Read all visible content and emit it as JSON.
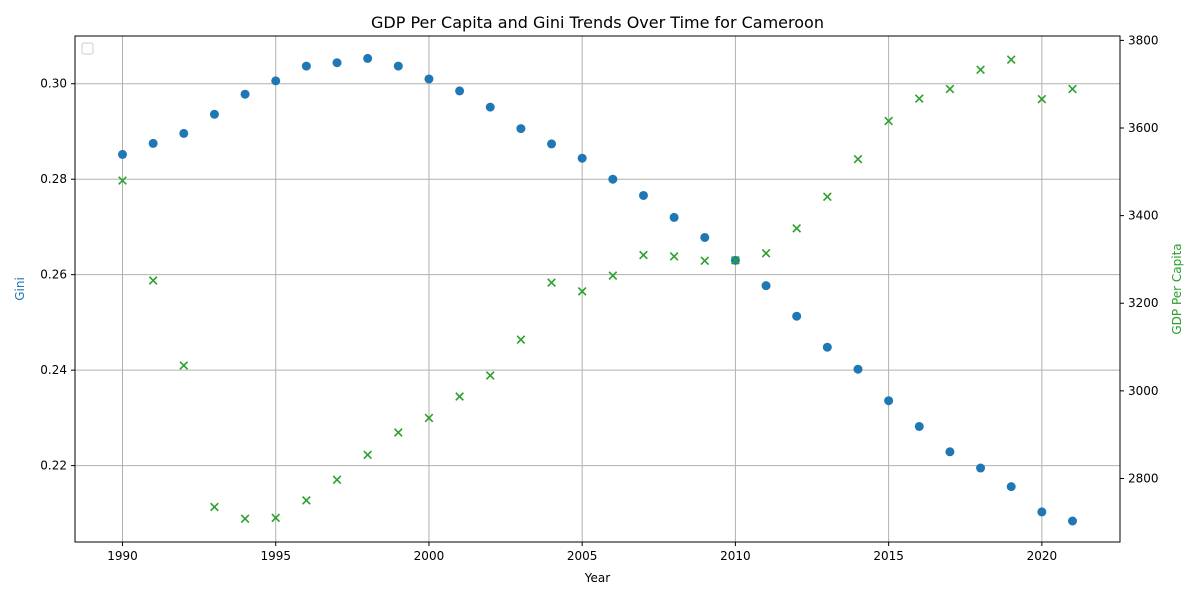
{
  "chart_data": {
    "type": "scatter",
    "title": "GDP Per Capita and Gini Trends Over Time for Cameroon",
    "xlabel": "Year",
    "ylabel_left": "Gini",
    "ylabel_right": "GDP Per Capita",
    "xlim": [
      1988.45,
      2022.55
    ],
    "ylim_left": [
      0.204,
      0.31
    ],
    "ylim_right": [
      2655,
      3810
    ],
    "x_ticks": [
      1990,
      1995,
      2000,
      2005,
      2010,
      2015,
      2020
    ],
    "y_left_ticks": [
      0.22,
      0.24,
      0.26,
      0.28,
      0.3
    ],
    "y_left_tick_labels": [
      "0.22",
      "0.24",
      "0.26",
      "0.28",
      "0.30"
    ],
    "y_right_ticks": [
      2800,
      3000,
      3200,
      3400,
      3600,
      3800
    ],
    "grid": true,
    "legend": "upper left (empty)",
    "colors": {
      "gini": "#1f77b4",
      "gdp": "#2ca02c"
    },
    "series": [
      {
        "axis": "left",
        "marker": "circle",
        "x": [
          1990,
          1991,
          1992,
          1993,
          1994,
          1995,
          1996,
          1997,
          1998,
          1999,
          2000,
          2001,
          2002,
          2003,
          2004,
          2005,
          2006,
          2007,
          2008,
          2009,
          2010,
          2011,
          2012,
          2013,
          2014,
          2015,
          2016,
          2017,
          2018,
          2019,
          2020,
          2021
        ],
        "values": [
          0.2852,
          0.2875,
          0.2896,
          0.2936,
          0.2978,
          0.3006,
          0.3037,
          0.3044,
          0.3053,
          0.3037,
          0.301,
          0.2985,
          0.2951,
          0.2906,
          0.2874,
          0.2844,
          0.28,
          0.2766,
          0.272,
          0.2678,
          0.263,
          0.2577,
          0.2513,
          0.2448,
          0.2402,
          0.2336,
          0.2282,
          0.2229,
          0.2195,
          0.2156,
          0.2103,
          0.2084
        ]
      },
      {
        "axis": "right",
        "marker": "x",
        "x": [
          1990,
          1991,
          1992,
          1993,
          1994,
          1995,
          1996,
          1997,
          1998,
          1999,
          2000,
          2001,
          2002,
          2003,
          2004,
          2005,
          2006,
          2007,
          2008,
          2009,
          2010,
          2011,
          2012,
          2013,
          2014,
          2015,
          2016,
          2017,
          2018,
          2019,
          2020,
          2021
        ],
        "values": [
          3480,
          3252,
          3058,
          2735,
          2708,
          2710,
          2750,
          2797,
          2854,
          2905,
          2938,
          2987,
          3035,
          3117,
          3247,
          3227,
          3263,
          3310,
          3307,
          3297,
          3298,
          3314,
          3371,
          3443,
          3529,
          3616,
          3667,
          3689,
          3733,
          3756,
          3666,
          3689
        ]
      }
    ]
  }
}
